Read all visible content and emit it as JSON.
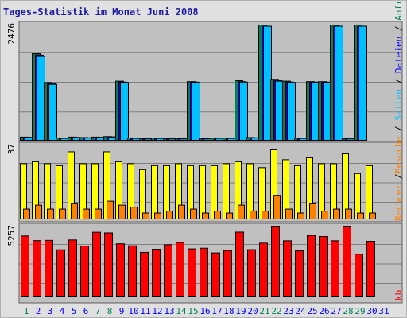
{
  "title": "Tages-Statistik im Monat Juni 2008",
  "legend": {
    "anfragen": "Anfragen",
    "dateien": "Dateien",
    "seiten": "Seiten",
    "besuche": "Besuche",
    "rechner": "Rechner",
    "kb": "kb",
    "separator": "/"
  },
  "colors": {
    "frame_bg": "#e0e0e0",
    "panel_bg": "#c0c0c0",
    "grid": "#808080",
    "anfragen": "#00805c",
    "dateien": "#0000ff",
    "seiten": "#00c0ff",
    "besuche": "#ffff00",
    "rechner": "#ff8000",
    "kb": "#ff0000",
    "weekday": "#0000ff",
    "weekend": "#00805c"
  },
  "chart_data": [
    {
      "type": "bar",
      "panel": "top",
      "ylabel": "2476",
      "ymax": 2476,
      "categories": [
        "1",
        "2",
        "3",
        "4",
        "5",
        "6",
        "7",
        "8",
        "9",
        "10",
        "11",
        "12",
        "13",
        "14",
        "15",
        "16",
        "17",
        "18",
        "19",
        "20",
        "21",
        "22",
        "23",
        "24",
        "25",
        "26",
        "27",
        "28",
        "29",
        "30",
        "31"
      ],
      "series": [
        {
          "name": "Anfragen",
          "values": [
            70,
            1860,
            1240,
            50,
            70,
            60,
            70,
            80,
            1270,
            50,
            40,
            50,
            40,
            40,
            1260,
            40,
            50,
            50,
            1280,
            60,
            2476,
            1310,
            1270,
            50,
            1260,
            1260,
            2476,
            40,
            2476,
            null,
            null
          ]
        },
        {
          "name": "Dateien",
          "values": [
            65,
            1830,
            1220,
            45,
            65,
            55,
            65,
            75,
            1250,
            45,
            35,
            45,
            35,
            35,
            1250,
            35,
            45,
            45,
            1260,
            55,
            2450,
            1290,
            1250,
            45,
            1250,
            1250,
            2450,
            35,
            2450,
            null,
            null
          ]
        },
        {
          "name": "Seiten",
          "values": [
            55,
            1800,
            1200,
            40,
            60,
            50,
            60,
            70,
            1240,
            40,
            30,
            40,
            30,
            30,
            1240,
            30,
            40,
            40,
            1250,
            50,
            2450,
            1270,
            1240,
            40,
            1240,
            1240,
            2450,
            30,
            2450,
            null,
            null
          ]
        }
      ]
    },
    {
      "type": "bar",
      "panel": "middle",
      "ylabel": "37",
      "ymax": 37,
      "categories": [
        "1",
        "2",
        "3",
        "4",
        "5",
        "6",
        "7",
        "8",
        "9",
        "10",
        "11",
        "12",
        "13",
        "14",
        "15",
        "16",
        "17",
        "18",
        "19",
        "20",
        "21",
        "22",
        "23",
        "24",
        "25",
        "26",
        "27",
        "28",
        "29",
        "30",
        "31"
      ],
      "series": [
        {
          "name": "Besuche",
          "values": [
            28,
            29,
            28,
            27,
            34,
            28,
            28,
            34,
            29,
            28,
            25,
            27,
            27,
            28,
            27,
            27,
            27,
            28,
            29,
            28,
            26,
            35,
            30,
            27,
            31,
            28,
            28,
            33,
            23,
            27,
            null
          ]
        },
        {
          "name": "Rechner",
          "values": [
            5,
            7,
            5,
            5,
            8,
            5,
            5,
            9,
            7,
            6,
            3,
            3,
            4,
            7,
            5,
            3,
            4,
            3,
            7,
            4,
            4,
            12,
            5,
            3,
            8,
            4,
            5,
            5,
            3,
            3,
            null
          ]
        }
      ]
    },
    {
      "type": "bar",
      "panel": "bottom",
      "ylabel": "5257",
      "ymax": 5257,
      "categories": [
        "1",
        "2",
        "3",
        "4",
        "5",
        "6",
        "7",
        "8",
        "9",
        "10",
        "11",
        "12",
        "13",
        "14",
        "15",
        "16",
        "17",
        "18",
        "19",
        "20",
        "21",
        "22",
        "23",
        "24",
        "25",
        "26",
        "27",
        "28",
        "29",
        "30",
        "31"
      ],
      "series": [
        {
          "name": "kb",
          "values": [
            4520,
            4170,
            4190,
            3480,
            4220,
            3760,
            4800,
            4750,
            3930,
            3780,
            3290,
            3520,
            3860,
            4030,
            3550,
            3600,
            3250,
            3420,
            4810,
            3490,
            3980,
            5257,
            4160,
            3400,
            4560,
            4480,
            4160,
            5257,
            3150,
            4120,
            null
          ]
        }
      ]
    }
  ]
}
